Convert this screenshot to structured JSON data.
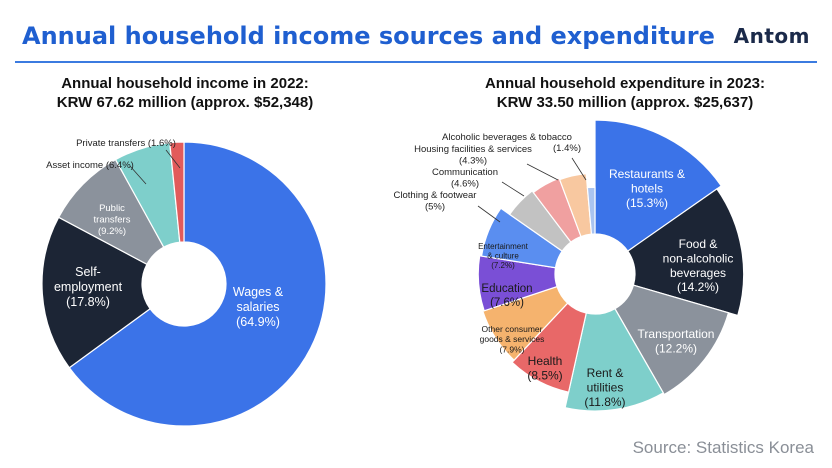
{
  "header": {
    "title": "Annual household income sources and expenditure",
    "brand": "Antom"
  },
  "source": "Source: Statistics Korea",
  "chart_data": [
    {
      "type": "pie",
      "title": "Annual household income in 2022:",
      "subtitle": "KRW 67.62 million (approx. $52,348)",
      "categories": [
        "Wages & salaries",
        "Self-employment",
        "Public transfers",
        "Asset income",
        "Private transfers"
      ],
      "values": [
        64.9,
        17.8,
        9.2,
        6.4,
        1.6
      ],
      "value_labels": [
        "(64.9%)",
        "(17.8%)",
        "(9.2%)",
        "(6.4%)",
        "(1.6%)"
      ],
      "colors": [
        "#3b73e8",
        "#1c2535",
        "#8b929c",
        "#7ecfcb",
        "#e25b5b"
      ],
      "donut": true
    },
    {
      "type": "pie",
      "title": "Annual household expenditure in 2023:",
      "subtitle": "KRW 33.50 million (approx. $25,637)",
      "categories": [
        "Restaurants & hotels",
        "Food & non-alcoholic beverages",
        "Transportation",
        "Rent & utilities",
        "Health",
        "Other consumer goods & services",
        "Education",
        "Entertainment & culture",
        "Clothing & footwear",
        "Communication",
        "Housing facilities & services",
        "Alcoholic beverages & tobacco"
      ],
      "values": [
        15.3,
        14.2,
        12.2,
        11.8,
        8.5,
        7.9,
        7.6,
        7.2,
        5,
        4.6,
        4.3,
        1.4
      ],
      "value_labels": [
        "(15.3%)",
        "(14.2%)",
        "(12.2%)",
        "(11.8%)",
        "(8.5%)",
        "(7.9%)",
        "(7.6%)",
        "(7.2%)",
        "(5%)",
        "(4.6%)",
        "(4.3%)",
        "(1.4%)"
      ],
      "colors": [
        "#3b73e8",
        "#1c2535",
        "#8b929c",
        "#7ecfcb",
        "#e86868",
        "#f5b36e",
        "#7a4fd6",
        "#5a8ef0",
        "#c2c2c2",
        "#f0a0a0",
        "#f8c8a0",
        "#aac4f0"
      ],
      "donut": true,
      "radius_scaled_by_value": true
    }
  ]
}
